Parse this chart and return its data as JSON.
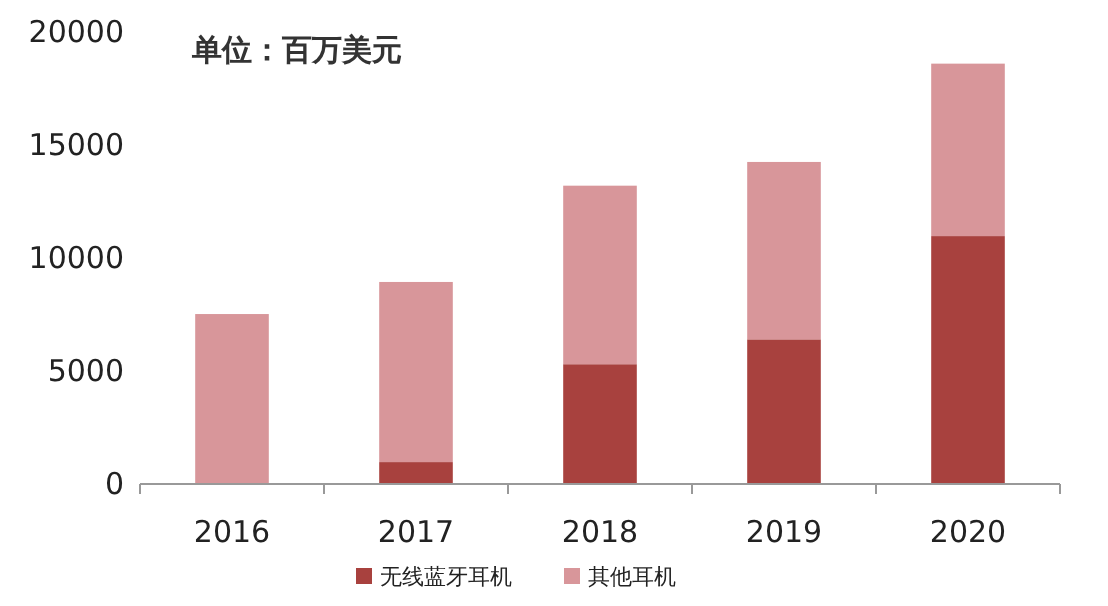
{
  "chart_data": {
    "type": "bar",
    "stacked": true,
    "categories": [
      "2016",
      "2017",
      "2018",
      "2019",
      "2020"
    ],
    "series": [
      {
        "name": "无线蓝牙耳机",
        "color": "#a8413e",
        "values": [
          0,
          970,
          5300,
          6400,
          10970
        ]
      },
      {
        "name": "其他耳机",
        "color": "#d8969a",
        "values": [
          7520,
          7970,
          7900,
          7850,
          7630
        ]
      }
    ],
    "ylim": [
      0,
      20000
    ],
    "yticks": [
      0,
      5000,
      10000,
      15000,
      20000
    ],
    "legend": "bottom",
    "grid": false,
    "annotations": [
      "单位：百万美元"
    ]
  }
}
